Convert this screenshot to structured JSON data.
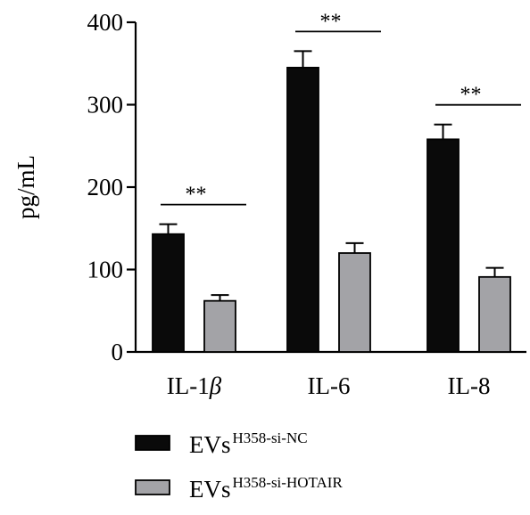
{
  "chart_data": {
    "type": "bar",
    "ylabel": "pg/mL",
    "ylim": [
      0,
      400
    ],
    "yticks": [
      0,
      100,
      200,
      300,
      400
    ],
    "categories": [
      "IL-1β",
      "IL-6",
      "IL-8"
    ],
    "category_display": [
      {
        "base": "IL-1",
        "italic": "β"
      },
      {
        "base": "IL-6",
        "italic": ""
      },
      {
        "base": "IL-8",
        "italic": ""
      }
    ],
    "series": [
      {
        "name": "EVs H358-si-NC",
        "base": "EVs",
        "sup": "H358-si-NC",
        "color": "#0a0a0a",
        "values": [
          143,
          345,
          258
        ],
        "errors": [
          12,
          20,
          18
        ]
      },
      {
        "name": "EVs H358-si-HOTAIR",
        "base": "EVs",
        "sup": "H358-si-HOTAIR",
        "color": "#a3a3a7",
        "values": [
          62,
          120,
          91
        ],
        "errors": [
          7,
          12,
          11
        ]
      }
    ],
    "significance": [
      "**",
      "**",
      "**"
    ],
    "legend_position": "bottom",
    "grid": false
  }
}
